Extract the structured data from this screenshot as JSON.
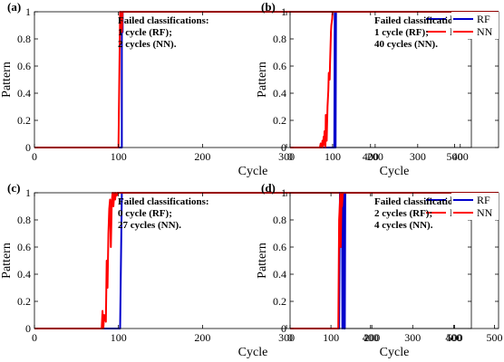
{
  "chart_data": [
    {
      "type": "line",
      "panel_label": "(a)",
      "xlabel": "Cycle",
      "ylabel": "Pattern",
      "xlim": [
        0,
        520
      ],
      "ylim": [
        0,
        1
      ],
      "xticks": [
        "0",
        "100",
        "200",
        "300",
        "400",
        "500"
      ],
      "yticks": [
        "0",
        "0.2",
        "0.4",
        "0.6",
        "0.8",
        "1"
      ],
      "grid": false,
      "legend": "top-right",
      "annotation": [
        "Failed classifications:",
        "1 cycle (RF);",
        "2 cycles (NN)."
      ],
      "series": [
        {
          "name": "RF",
          "color": "#0000cc",
          "x": [
            0,
            102,
            104,
            104,
            105,
            105,
            520
          ],
          "y": [
            0,
            0,
            0,
            0.85,
            0.85,
            1,
            1
          ]
        },
        {
          "name": "NN",
          "color": "#ff0000",
          "x": [
            0,
            100,
            102,
            103,
            104,
            105,
            520
          ],
          "y": [
            0,
            0,
            1,
            1,
            0.85,
            1,
            1
          ]
        }
      ]
    },
    {
      "type": "line",
      "panel_label": "(b)",
      "xlabel": "Cycle",
      "ylabel": "Pattern",
      "xlim": [
        0,
        490
      ],
      "ylim": [
        0,
        1
      ],
      "xticks": [
        "0",
        "100",
        "200",
        "300",
        "400"
      ],
      "yticks": [
        "0",
        "0.2",
        "0.4",
        "0.6",
        "0.8",
        "1"
      ],
      "grid": false,
      "legend": "top-right",
      "annotation": [
        "Failed classifications:",
        "1 cycle (RF);",
        "40 cycles (NN)."
      ],
      "series": [
        {
          "name": "RF",
          "color": "#0000cc",
          "x": [
            0,
            104,
            105,
            106,
            106,
            107,
            108,
            490
          ],
          "y": [
            0,
            0,
            1,
            1,
            0,
            0,
            1,
            1
          ]
        },
        {
          "name": "NN",
          "color": "#ff0000",
          "x": [
            0,
            70,
            72,
            75,
            76,
            77,
            79,
            80,
            81,
            83,
            84,
            86,
            88,
            90,
            91,
            93,
            94,
            96,
            97,
            99,
            100,
            101,
            490
          ],
          "y": [
            0,
            0,
            0.03,
            0,
            0.05,
            0,
            0.08,
            0.02,
            0.12,
            0,
            0.24,
            0.05,
            0.3,
            0.42,
            0.55,
            0.5,
            0.62,
            0.85,
            0.9,
            0.95,
            1,
            1,
            1
          ]
        }
      ]
    },
    {
      "type": "line",
      "panel_label": "(c)",
      "xlabel": "Cycle",
      "ylabel": "Pattern",
      "xlim": [
        0,
        520
      ],
      "ylim": [
        0,
        1
      ],
      "xticks": [
        "0",
        "100",
        "200",
        "300",
        "400",
        "500"
      ],
      "yticks": [
        "0",
        "0.2",
        "0.4",
        "0.6",
        "0.8",
        "1"
      ],
      "grid": false,
      "legend": "top-right",
      "annotation": [
        "Failed classifications:",
        "0 cycle (RF);",
        "27 cycles (NN)."
      ],
      "series": [
        {
          "name": "RF",
          "color": "#0000cc",
          "x": [
            0,
            102,
            104,
            520
          ],
          "y": [
            0,
            0,
            1,
            1
          ]
        },
        {
          "name": "NN",
          "color": "#ff0000",
          "x": [
            0,
            80,
            81,
            82,
            83,
            85,
            86,
            87,
            88,
            89,
            90,
            91,
            92,
            93,
            94,
            95,
            96,
            97,
            98,
            99,
            100,
            520
          ],
          "y": [
            0,
            0,
            0.13,
            0,
            0.1,
            0.05,
            0.5,
            0.3,
            0.7,
            0.88,
            0.95,
            0.6,
            0.93,
            1,
            0.9,
            1,
            0.95,
            1,
            0.98,
            1,
            1,
            1
          ]
        }
      ]
    },
    {
      "type": "line",
      "panel_label": "(d)",
      "xlabel": "Cycle",
      "ylabel": "Pattern",
      "xlim": [
        0,
        510
      ],
      "ylim": [
        0,
        1
      ],
      "xticks": [
        "0",
        "100",
        "200",
        "300",
        "400",
        "500"
      ],
      "yticks": [
        "0",
        "0.2",
        "0.4",
        "0.6",
        "0.8",
        "1"
      ],
      "grid": false,
      "legend": "top-right",
      "annotation": [
        "Failed classifications:",
        "2 cycles (RF);",
        "4 cycles (NN)."
      ],
      "series": [
        {
          "name": "RF",
          "color": "#0000cc",
          "x": [
            0,
            120,
            122,
            127,
            128,
            128,
            131,
            132,
            132,
            134,
            135,
            135,
            510
          ],
          "y": [
            0,
            0,
            1,
            1,
            0,
            0,
            1,
            1,
            0,
            0,
            1,
            1,
            1
          ]
        },
        {
          "name": "NN",
          "color": "#ff0000",
          "x": [
            0,
            118,
            120,
            123,
            124,
            126,
            127,
            129,
            510
          ],
          "y": [
            0,
            0,
            0.8,
            1,
            0.6,
            1,
            0.9,
            1,
            1
          ]
        }
      ]
    }
  ]
}
